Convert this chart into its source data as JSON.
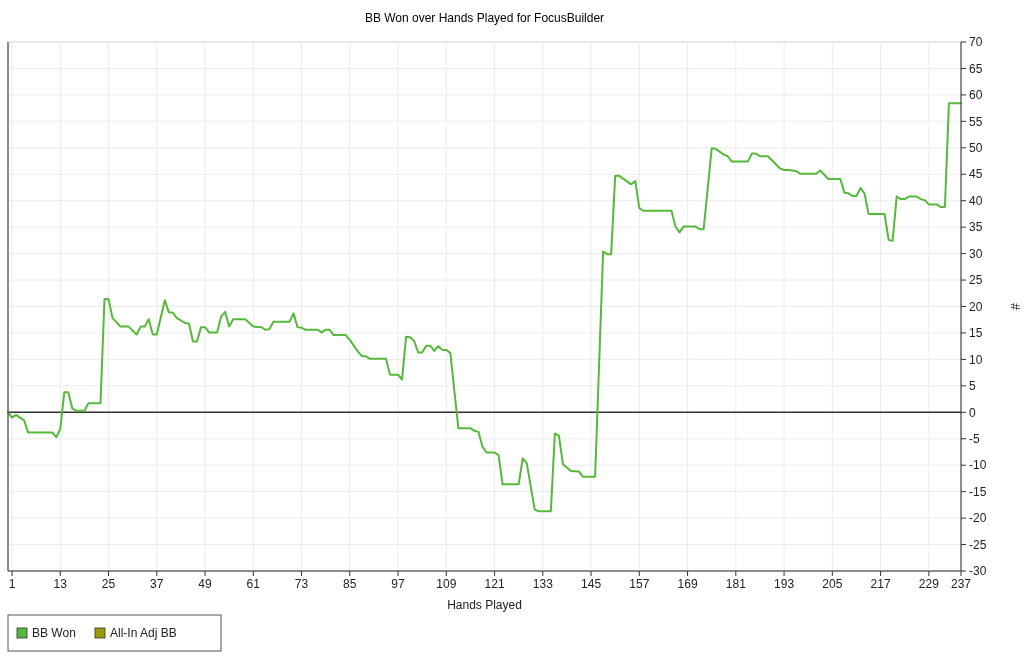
{
  "chart_data": {
    "type": "line",
    "title": "BB Won over Hands Played for FocusBuilder",
    "xlabel": "Hands Played",
    "ylabel": "#",
    "x": [
      0,
      1,
      2,
      3,
      4,
      5,
      11,
      12,
      13,
      14,
      15,
      16,
      17,
      19,
      20,
      23,
      24,
      25,
      26,
      28,
      30,
      32,
      33,
      34,
      35,
      36,
      37,
      39,
      40,
      41,
      42,
      44,
      45,
      46,
      47,
      48,
      49,
      50,
      52,
      53,
      54,
      55,
      56,
      59,
      61,
      63,
      64,
      65,
      66,
      70,
      71,
      72,
      73,
      74,
      77,
      78,
      79,
      80,
      81,
      84,
      85,
      87,
      88,
      89,
      90,
      94,
      95,
      97,
      98,
      99,
      100,
      101,
      102,
      103,
      104,
      105,
      106,
      107,
      108,
      109,
      110,
      112,
      115,
      116,
      117,
      118,
      119,
      121,
      122,
      123,
      127,
      128,
      129,
      131,
      132,
      135,
      136,
      137,
      138,
      140,
      142,
      143,
      146,
      148,
      149,
      150,
      151,
      152,
      154,
      155,
      156,
      157,
      158,
      165,
      166,
      167,
      168,
      171,
      172,
      173,
      175,
      176,
      178,
      179,
      180,
      184,
      185,
      186,
      187,
      189,
      192,
      193,
      194,
      196,
      197,
      201,
      202,
      204,
      207,
      208,
      209,
      210,
      211,
      212,
      213,
      214,
      218,
      219,
      220,
      221,
      222,
      223,
      224,
      226,
      227,
      228,
      229,
      231,
      232,
      233,
      234,
      237
    ],
    "series": [
      {
        "name": "BB Won",
        "color": "#55b93a",
        "values": [
          0,
          -1.0,
          -0.5,
          -1.0,
          -1.5,
          -3.8,
          -3.8,
          -4.7,
          -3.2,
          3.8,
          3.8,
          0.7,
          0.3,
          0.3,
          1.7,
          1.7,
          21.4,
          21.4,
          17.8,
          16.2,
          16.2,
          14.7,
          16.2,
          16.2,
          17.6,
          14.7,
          14.7,
          21.2,
          18.9,
          18.8,
          17.8,
          16.9,
          16.8,
          13.4,
          13.4,
          16.1,
          16.1,
          15.1,
          15.1,
          18.1,
          19.0,
          16.2,
          17.6,
          17.6,
          16.2,
          16.1,
          15.6,
          15.7,
          17.1,
          17.1,
          18.7,
          16.1,
          16.0,
          15.6,
          15.6,
          15.1,
          15.6,
          15.6,
          14.6,
          14.6,
          13.7,
          11.5,
          10.6,
          10.6,
          10.1,
          10.1,
          7.1,
          7.1,
          6.2,
          14.3,
          14.2,
          13.5,
          11.3,
          11.3,
          12.6,
          12.6,
          11.6,
          12.5,
          11.8,
          11.8,
          11.2,
          -3.0,
          -3.0,
          -3.5,
          -3.7,
          -6.5,
          -7.6,
          -7.6,
          -8.1,
          -13.6,
          -13.6,
          -8.7,
          -9.6,
          -18.4,
          -18.7,
          -18.7,
          -4.0,
          -4.4,
          -9.8,
          -11.1,
          -11.2,
          -12.2,
          -12.2,
          30.4,
          29.9,
          29.9,
          44.7,
          44.7,
          43.6,
          43.1,
          43.7,
          38.6,
          38.1,
          38.1,
          35.1,
          34.0,
          35.1,
          35.1,
          34.6,
          34.6,
          49.9,
          49.8,
          48.7,
          48.4,
          47.4,
          47.4,
          48.9,
          48.9,
          48.4,
          48.4,
          46.1,
          45.8,
          45.8,
          45.6,
          45.1,
          45.1,
          45.7,
          44.1,
          44.1,
          41.5,
          41.4,
          40.9,
          40.9,
          42.4,
          41.4,
          37.5,
          37.5,
          32.6,
          32.4,
          40.8,
          40.3,
          40.3,
          40.8,
          40.8,
          40.3,
          40.1,
          39.3,
          39.3,
          38.8,
          38.8,
          58.4,
          58.4
        ]
      },
      {
        "name": "All-In Adj BB",
        "color": "#999900",
        "values": [
          null,
          null,
          null,
          null,
          null,
          null,
          null,
          null,
          null,
          null,
          null,
          null,
          null,
          null,
          null,
          null,
          null,
          null,
          null,
          null,
          null,
          null,
          null,
          null,
          null,
          null,
          null,
          null,
          null,
          null,
          null,
          null,
          null,
          null,
          null,
          null,
          null,
          null,
          null,
          null,
          null,
          null,
          null,
          null,
          null,
          null,
          null,
          null,
          null,
          null,
          null,
          null,
          null,
          null,
          null,
          null,
          null,
          null,
          null,
          null,
          null,
          null,
          null,
          null,
          null,
          null,
          null,
          null,
          null,
          null,
          null,
          null,
          null,
          null,
          null,
          null,
          null,
          null,
          null,
          null,
          null,
          null,
          null,
          null,
          null,
          null,
          null,
          null,
          null,
          null,
          null,
          null,
          null,
          null,
          null,
          null,
          null,
          null,
          null,
          null,
          null,
          null,
          null,
          null,
          null,
          null,
          null,
          null,
          null,
          null,
          null,
          null,
          null,
          null,
          null,
          null,
          null,
          null,
          null,
          null,
          null,
          null,
          null,
          null,
          null,
          null,
          null,
          null,
          null,
          null,
          null,
          null,
          null,
          null,
          null,
          null,
          null,
          null,
          null,
          null,
          null,
          null,
          null,
          null,
          null,
          null,
          null,
          null,
          null,
          null,
          null,
          null,
          null,
          null,
          null,
          null,
          null,
          null,
          null,
          null,
          null,
          null
        ]
      }
    ],
    "xlim": [
      0,
      237
    ],
    "xticks": [
      1,
      13,
      25,
      37,
      49,
      61,
      73,
      85,
      97,
      109,
      121,
      133,
      145,
      157,
      169,
      181,
      193,
      205,
      217,
      229,
      237
    ],
    "ylim": [
      -30,
      70
    ],
    "yticks": [
      -30,
      -25,
      -20,
      -15,
      -10,
      -5,
      0,
      5,
      10,
      15,
      20,
      25,
      30,
      35,
      40,
      45,
      50,
      55,
      60,
      65,
      70
    ],
    "ref_lines": [
      {
        "axis": "y",
        "value": 0,
        "color": "#333333"
      }
    ],
    "grid": true,
    "legend": "bottom left"
  }
}
